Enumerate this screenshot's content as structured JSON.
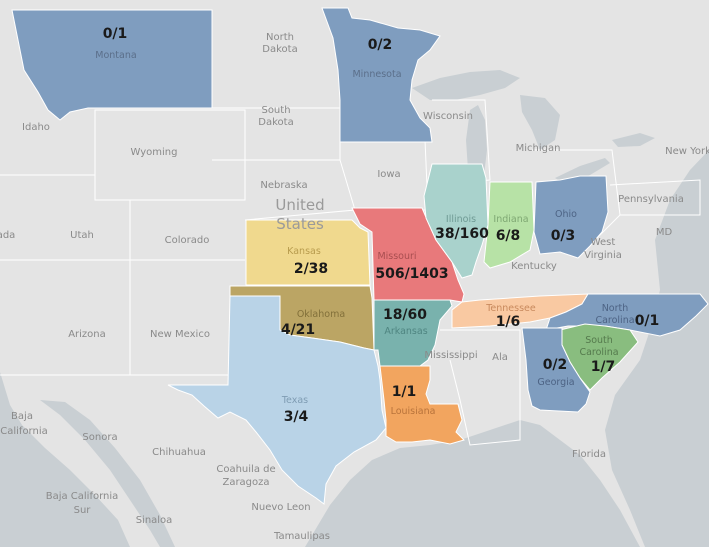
{
  "base_labels": {
    "north_dakota": [
      "North",
      "Dakota"
    ],
    "south_dakota": [
      "South",
      "Dakota"
    ],
    "wyoming": "Wyoming",
    "idaho": "Idaho",
    "nebraska": "Nebraska",
    "united_states": [
      "United",
      "States"
    ],
    "utah": "Utah",
    "colorado": "Colorado",
    "nevada_partial": "ada",
    "arizona": "Arizona",
    "new_mexico": "New Mexico",
    "iowa": "Iowa",
    "wisconsin": "Wisconsin",
    "michigan": "Michigan",
    "new_york": "New York",
    "pennsylvania": "Pennsylvania",
    "maryland": "MD",
    "west_virginia": [
      "West",
      "Virginia"
    ],
    "kentucky": "Kentucky",
    "mississippi": "Mississippi",
    "alabama_partial": "Ala",
    "florida": "Florida",
    "baja_california": [
      "Baja",
      "California"
    ],
    "baja_california_sur": [
      "Baja California",
      "Sur"
    ],
    "sonora": "Sonora",
    "chihuahua": "Chihuahua",
    "coahuila": [
      "Coahuila de",
      "Zaragoza"
    ],
    "nuevo_leon": "Nuevo Leon",
    "sinaloa": "Sinaloa",
    "tamaulipas": "Tamaulipas"
  },
  "states": [
    {
      "key": "montana",
      "name": "Montana",
      "ratio": "0/1",
      "color": "#7f9dbf"
    },
    {
      "key": "minnesota",
      "name": "Minnesota",
      "ratio": "0/2",
      "color": "#7f9dbf"
    },
    {
      "key": "kansas",
      "name": "Kansas",
      "ratio": "2/38",
      "color": "#f0d98e"
    },
    {
      "key": "missouri",
      "name": "Missouri",
      "ratio": "506/1403",
      "color": "#e8797b"
    },
    {
      "key": "illinois",
      "name": "Illinois",
      "ratio": "38/160",
      "color": "#a9d2cc"
    },
    {
      "key": "indiana",
      "name": "Indiana",
      "ratio": "6/8",
      "color": "#b7e2a6"
    },
    {
      "key": "ohio",
      "name": "Ohio",
      "ratio": "0/3",
      "color": "#7f9dbf"
    },
    {
      "key": "oklahoma",
      "name": "Oklahoma",
      "ratio": "4/21",
      "color": "#bba564"
    },
    {
      "key": "arkansas",
      "name": "Arkansas",
      "ratio": "18/60",
      "color": "#79b2ad"
    },
    {
      "key": "tennessee",
      "name": "Tennessee",
      "ratio": "1/6",
      "color": "#f9c9a2"
    },
    {
      "key": "north_carolina",
      "name": "North Carolina",
      "ratio": "0/1",
      "color": "#7f9dbf"
    },
    {
      "key": "south_carolina",
      "name": "South Carolina",
      "ratio": "1/7",
      "color": "#89bd7f"
    },
    {
      "key": "georgia",
      "name": "Georgia",
      "ratio": "0/2",
      "color": "#7f9dbf"
    },
    {
      "key": "texas",
      "name": "Texas",
      "ratio": "3/4",
      "color": "#b9d3e7"
    },
    {
      "key": "louisiana",
      "name": "Louisiana",
      "ratio": "1/1",
      "color": "#f2a55f"
    }
  ],
  "colors": {
    "land": "#e4e4e4",
    "water": "#c9cfd3",
    "border": "#ffffff"
  }
}
